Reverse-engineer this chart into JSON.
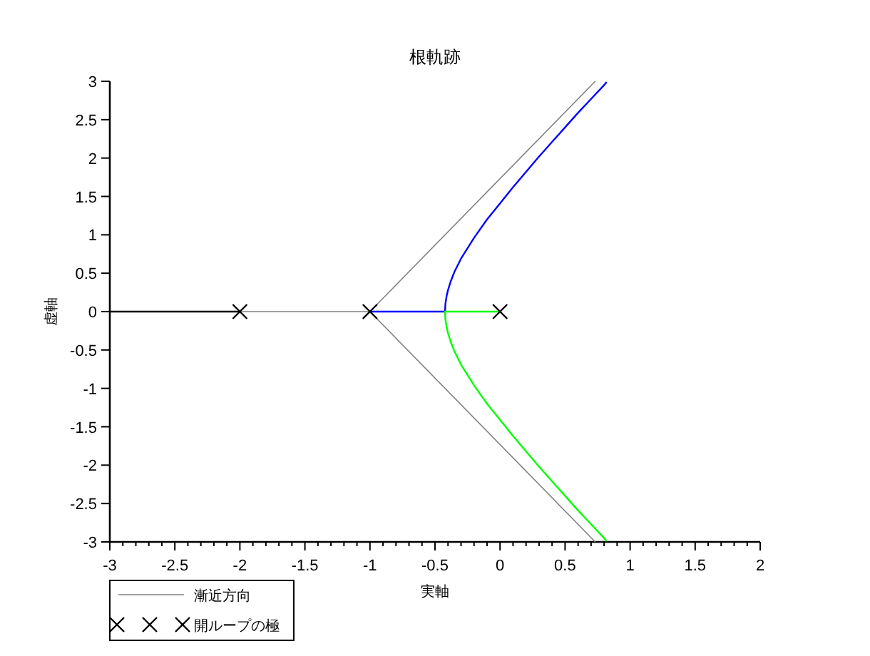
{
  "chart_data": {
    "type": "line",
    "title": "根軌跡",
    "xlabel": "実軸",
    "ylabel": "虚軸",
    "xlim": [
      -3,
      2
    ],
    "ylim": [
      -3,
      3
    ],
    "xticks": [
      -3,
      -2.5,
      -2,
      -1.5,
      -1,
      -0.5,
      0,
      0.5,
      1,
      1.5,
      2
    ],
    "yticks": [
      -3,
      -2.5,
      -2,
      -1.5,
      -1,
      -0.5,
      0,
      0.5,
      1,
      1.5,
      2,
      2.5,
      3
    ],
    "grid": false,
    "legend": "bottom left",
    "series": [
      {
        "color": "#808080",
        "x": [
          -1,
          -2
        ],
        "values": [
          0,
          0
        ]
      },
      {
        "name": "漸近方向",
        "color": "#808080",
        "x": [
          0.732,
          -1,
          0.732
        ],
        "values": [
          3,
          0,
          -3
        ]
      },
      {
        "color": "#000000",
        "x": [
          -3,
          -2
        ],
        "values": [
          0,
          0
        ]
      },
      {
        "color": "#0000ff",
        "x": [
          -1,
          -0.423,
          -0.423,
          -0.42,
          -0.41,
          -0.4,
          -0.38,
          -0.35,
          -0.3,
          -0.2,
          -0.1,
          0,
          0.1,
          0.2,
          0.3,
          0.4,
          0.5,
          0.6,
          0.7,
          0.8,
          0.82
        ],
        "values": [
          0,
          0,
          0,
          0.1,
          0.21,
          0.28,
          0.39,
          0.52,
          0.69,
          0.96,
          1.2,
          1.41,
          1.62,
          1.82,
          2.02,
          2.21,
          2.4,
          2.59,
          2.77,
          2.95,
          2.99
        ]
      },
      {
        "color": "#00ff00",
        "x": [
          0,
          -0.423,
          -0.423,
          -0.42,
          -0.41,
          -0.4,
          -0.38,
          -0.35,
          -0.3,
          -0.2,
          -0.1,
          0,
          0.1,
          0.2,
          0.3,
          0.4,
          0.5,
          0.6,
          0.7,
          0.8,
          0.82
        ],
        "values": [
          0,
          0,
          0,
          -0.1,
          -0.21,
          -0.28,
          -0.39,
          -0.52,
          -0.69,
          -0.96,
          -1.2,
          -1.41,
          -1.62,
          -1.82,
          -2.02,
          -2.21,
          -2.4,
          -2.59,
          -2.77,
          -2.95,
          -2.99
        ]
      },
      {
        "type": "scatter",
        "name": "開ループの極",
        "color": "#000000",
        "marker": "cross",
        "x": [
          -2,
          -1,
          0
        ],
        "values": [
          0,
          0,
          0
        ]
      }
    ]
  }
}
